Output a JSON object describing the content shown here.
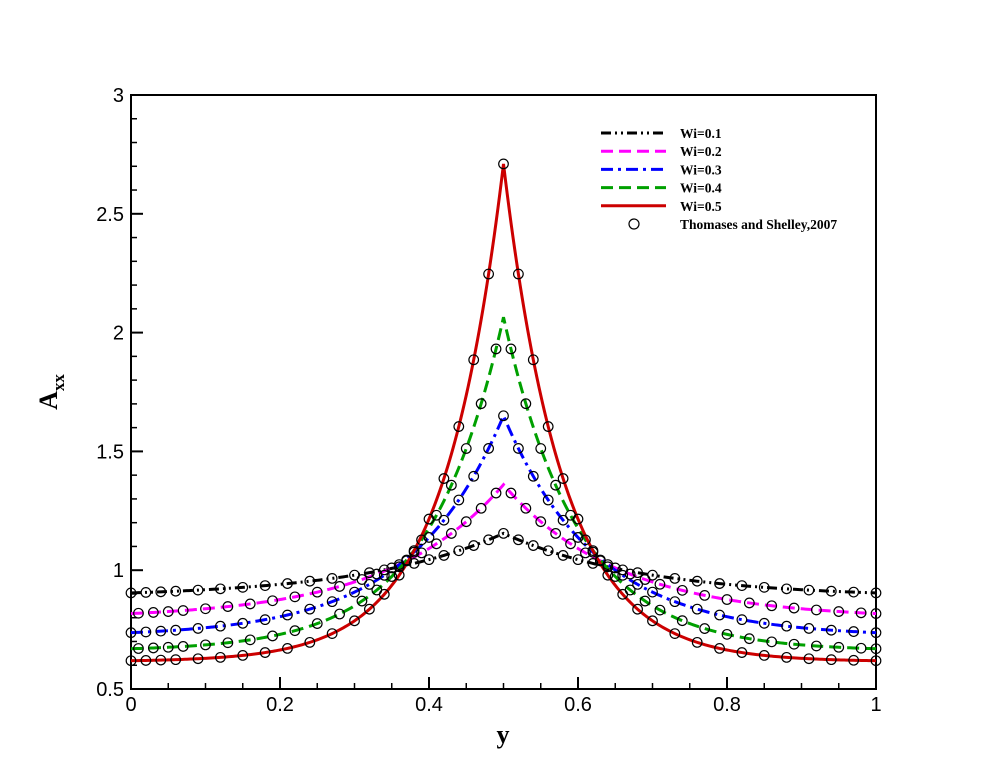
{
  "chart_data": {
    "type": "line",
    "title": "",
    "xlabel": "y",
    "ylabel": {
      "base": "A",
      "sub": "xx"
    },
    "xlim": [
      0,
      1
    ],
    "ylim": [
      0.5,
      3
    ],
    "xticks": [
      "0",
      "0.2",
      "0.4",
      "0.6",
      "0.8",
      "1"
    ],
    "yticks": [
      "0.5",
      "1",
      "1.5",
      "2",
      "2.5",
      "3"
    ],
    "legend_position": "top-right",
    "series": [
      {
        "name": "Wi=0.1",
        "color": "#000000",
        "dash": "dash-dot-dot",
        "edge": 0.885,
        "peak": 1.155,
        "width": 0.19
      },
      {
        "name": "Wi=0.2",
        "color": "#ff00ff",
        "dash": "dash",
        "edge": 0.795,
        "peak": 1.36,
        "width": 0.155
      },
      {
        "name": "Wi=0.3",
        "color": "#0000ff",
        "dash": "dash-dot",
        "edge": 0.72,
        "peak": 1.65,
        "width": 0.125
      },
      {
        "name": "Wi=0.4",
        "color": "#00a000",
        "dash": "dash",
        "edge": 0.66,
        "peak": 2.065,
        "width": 0.1
      },
      {
        "name": "Wi=0.5",
        "color": "#cc0000",
        "dash": "solid",
        "edge": 0.615,
        "peak": 2.71,
        "width": 0.08
      }
    ],
    "reference": {
      "name": "Thomases and Shelley,2007",
      "marker": "open-circle"
    }
  }
}
